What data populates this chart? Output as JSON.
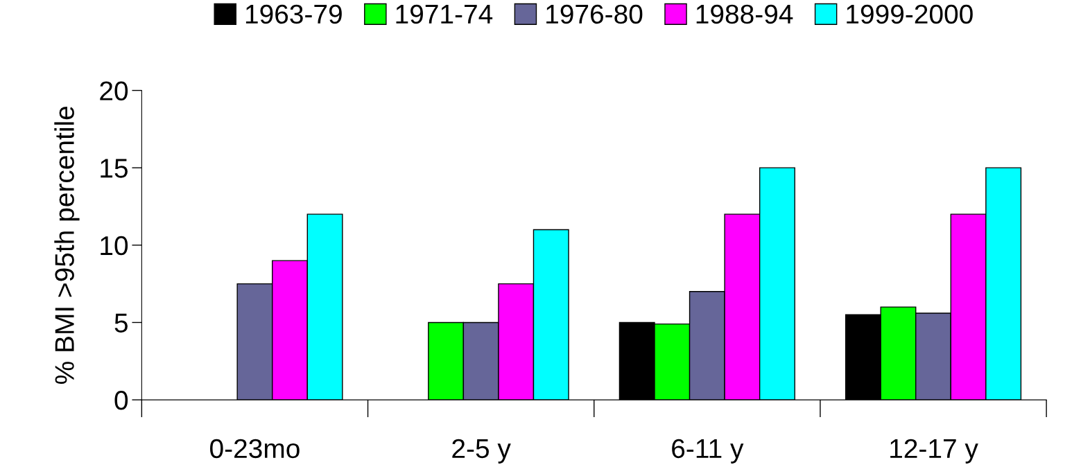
{
  "chart_data": {
    "type": "bar",
    "ylabel": "% BMI >95th percentile",
    "categories": [
      "0-23mo",
      "2-5 y",
      "6-11 y",
      "12-17 y"
    ],
    "series": [
      {
        "name": "1963-79",
        "color": "#000000",
        "values": [
          null,
          null,
          5,
          5.5
        ]
      },
      {
        "name": "1971-74",
        "color": "#00ff00",
        "values": [
          null,
          5,
          4.9,
          6
        ]
      },
      {
        "name": "1976-80",
        "color": "#666699",
        "values": [
          7.5,
          5,
          7,
          5.6
        ]
      },
      {
        "name": "1988-94",
        "color": "#ff00ff",
        "values": [
          9,
          7.5,
          12,
          12
        ]
      },
      {
        "name": "1999-2000",
        "color": "#00ffff",
        "values": [
          12,
          11,
          15,
          15
        ]
      }
    ],
    "ylim": [
      0,
      20
    ],
    "yticks": [
      0,
      5,
      10,
      15,
      20
    ],
    "grid": false,
    "legend": "top"
  }
}
